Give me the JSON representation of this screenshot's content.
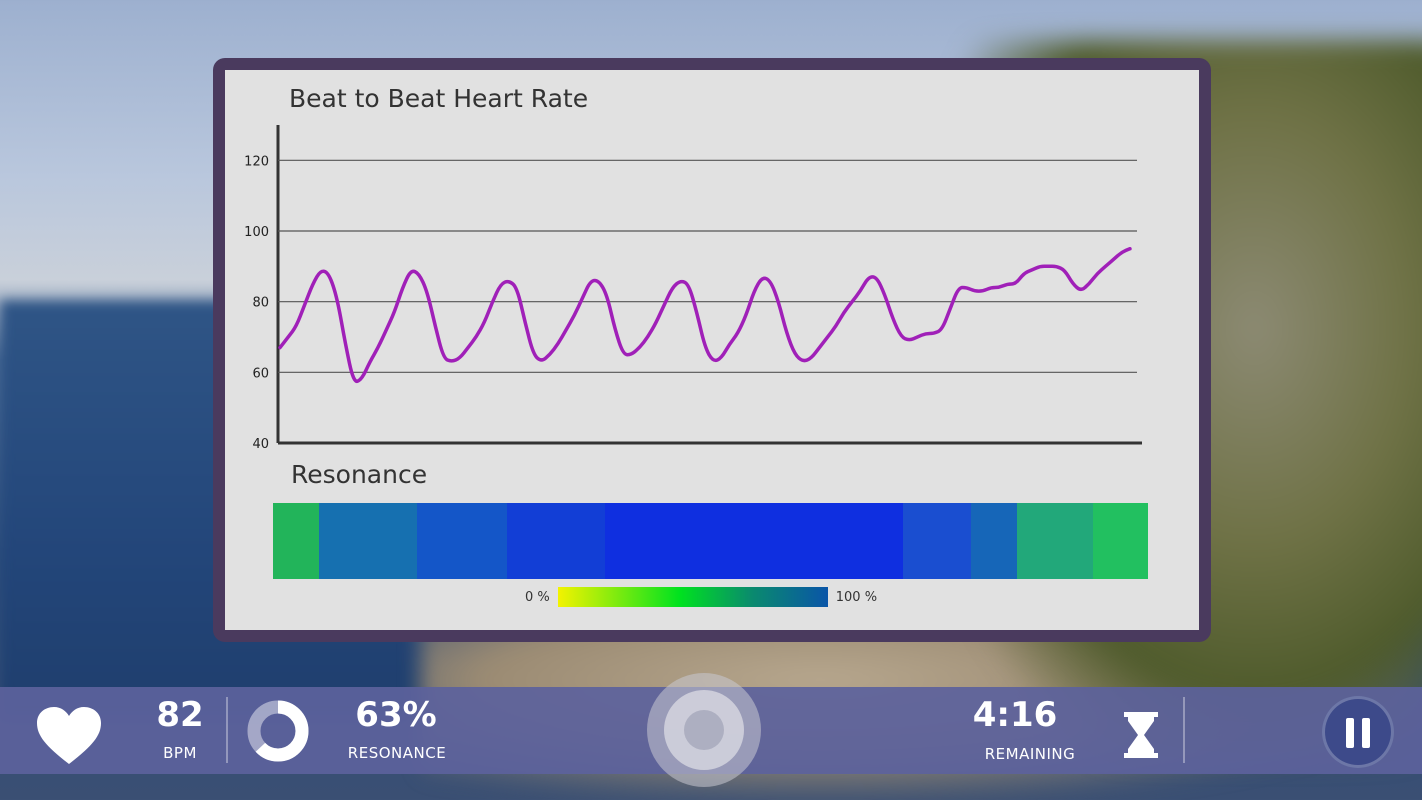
{
  "chart_data": {
    "type": "line",
    "title": "Beat to Beat Heart Rate",
    "ylim": [
      40,
      130
    ],
    "yticks": [
      40,
      60,
      80,
      100,
      120
    ],
    "series": [
      {
        "color": "#a020b8",
        "values": [
          67,
          70,
          73,
          79,
          85,
          89,
          88,
          81,
          68,
          57,
          58,
          63,
          67,
          72,
          77,
          84,
          89,
          88,
          83,
          73,
          64,
          63,
          64,
          67,
          70,
          74,
          80,
          85,
          86,
          84,
          74,
          65,
          63,
          65,
          68,
          72,
          76,
          81,
          86,
          86,
          82,
          72,
          65,
          65,
          67,
          70,
          74,
          79,
          84,
          86,
          85,
          77,
          67,
          63,
          64,
          68,
          71,
          76,
          83,
          87,
          86,
          80,
          71,
          65,
          63,
          64,
          67,
          70,
          73,
          77,
          80,
          83,
          87,
          87,
          82,
          75,
          70,
          69,
          70,
          71,
          71,
          72,
          78,
          84,
          84,
          83,
          83,
          84,
          84,
          85,
          85,
          88,
          89,
          90,
          90,
          90,
          89,
          85,
          83,
          85,
          88,
          90,
          92,
          94,
          95
        ]
      }
    ]
  },
  "resonance": {
    "title": "Resonance",
    "segments": [
      {
        "color": "#22b45a",
        "weight": 46
      },
      {
        "color": "#1670b0",
        "weight": 98
      },
      {
        "color": "#1456c8",
        "weight": 90
      },
      {
        "color": "#123ed6",
        "weight": 98
      },
      {
        "color": "#0f2fe0",
        "weight": 298
      },
      {
        "color": "#1a4ed0",
        "weight": 68
      },
      {
        "color": "#1666b8",
        "weight": 46
      },
      {
        "color": "#22a87a",
        "weight": 76
      },
      {
        "color": "#22c060",
        "weight": 55
      }
    ],
    "legend_min": "0 %",
    "legend_max": "100 %"
  },
  "status": {
    "bpm_value": "82",
    "bpm_label": "BPM",
    "resonance_value": "63%",
    "resonance_label": "RESONANCE",
    "resonance_fraction": 0.63,
    "time_value": "4:16",
    "time_label": "REMAINING"
  }
}
